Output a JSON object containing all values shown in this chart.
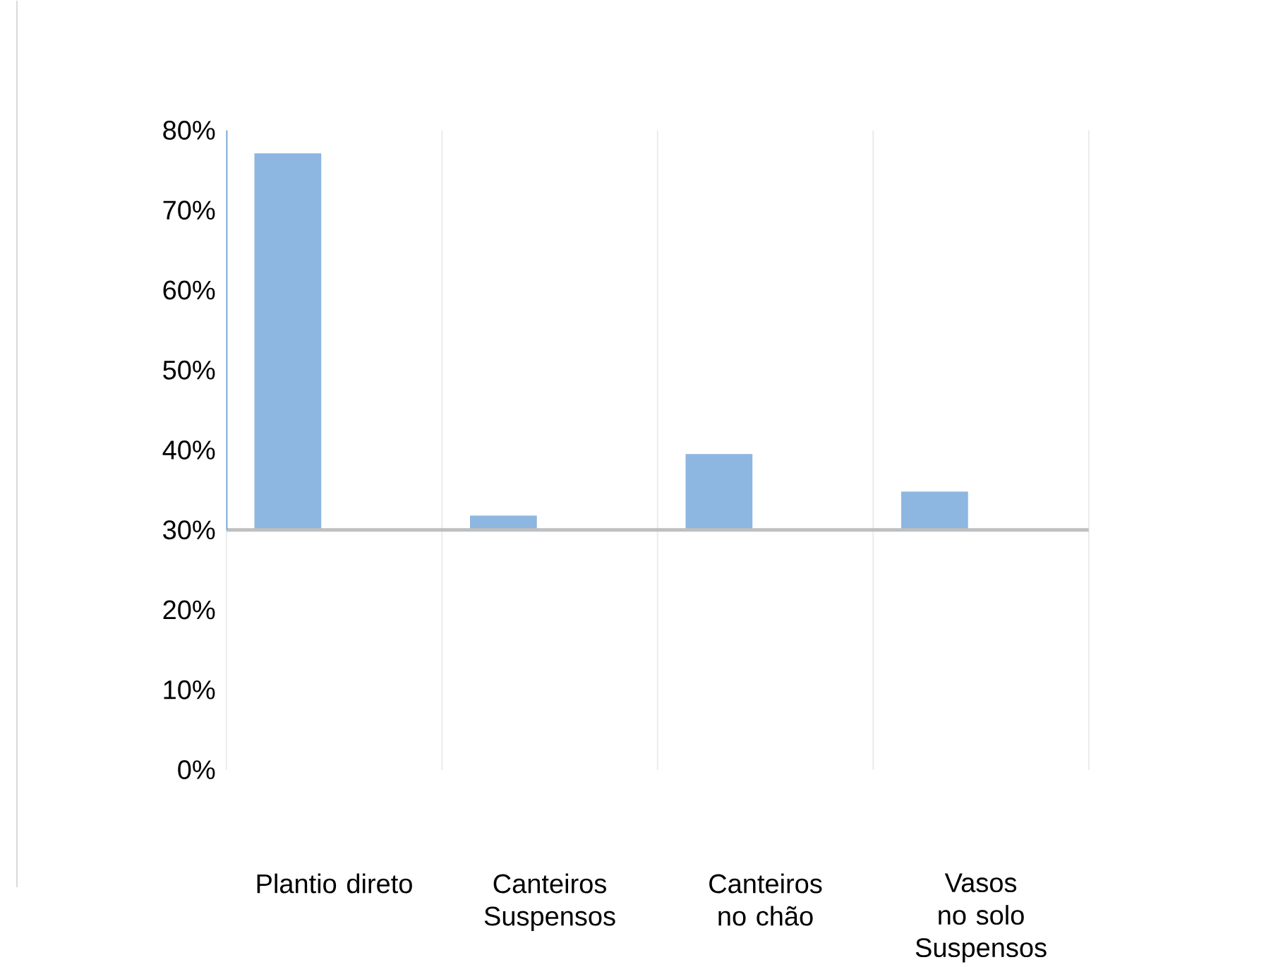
{
  "chart_data": {
    "type": "bar",
    "categories": [
      "Plantio direto",
      "Canteiros Suspensos",
      "Canteiros no chão",
      "Vasos no solo Suspensos"
    ],
    "base": [
      30,
      30,
      30,
      30
    ],
    "values": [
      47.1,
      1.8,
      9.5,
      4.8
    ],
    "color": "#8db6e0",
    "ylim": [
      0,
      80
    ],
    "yticks": [
      {
        "value": 0,
        "label": "0%"
      },
      {
        "value": 10,
        "label": "10%"
      },
      {
        "value": 20,
        "label": "20%"
      },
      {
        "value": 30,
        "label": "30%"
      },
      {
        "value": 40,
        "label": "40%"
      },
      {
        "value": 50,
        "label": "50%"
      },
      {
        "value": 60,
        "label": "60%"
      },
      {
        "value": 70,
        "label": "70%"
      },
      {
        "value": 80,
        "label": "80%"
      }
    ],
    "grid": "x",
    "ref_lines": [
      {
        "axis": "y",
        "value": 30,
        "color": "#bfbfbf"
      }
    ]
  }
}
